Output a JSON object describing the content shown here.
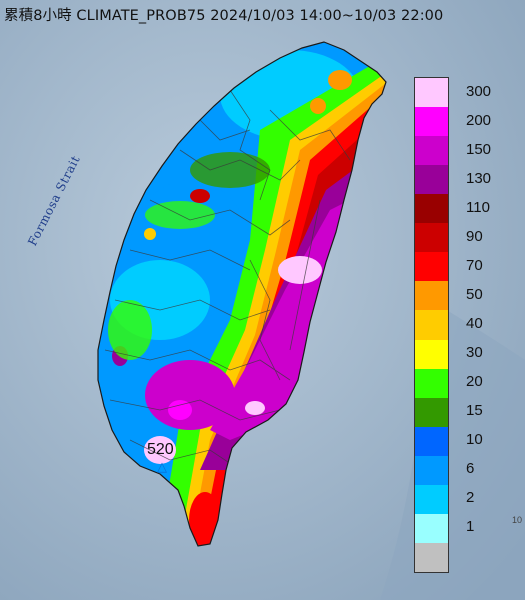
{
  "title": "累積8小時 CLIMATE_PROB75 2024/10/03 14:00~10/03 22:00",
  "strait_label": "Formosa Strait",
  "max_value": "520",
  "edge_number": "10",
  "legend": [
    {
      "label": "300",
      "color": "#ffc8ff"
    },
    {
      "label": "200",
      "color": "#ff00ff"
    },
    {
      "label": "150",
      "color": "#cc00cc"
    },
    {
      "label": "130",
      "color": "#990099"
    },
    {
      "label": "110",
      "color": "#990000"
    },
    {
      "label": "90",
      "color": "#cc0000"
    },
    {
      "label": "70",
      "color": "#ff0000"
    },
    {
      "label": "50",
      "color": "#ff9900"
    },
    {
      "label": "40",
      "color": "#ffcc00"
    },
    {
      "label": "30",
      "color": "#ffff00"
    },
    {
      "label": "20",
      "color": "#33ff00"
    },
    {
      "label": "15",
      "color": "#339900"
    },
    {
      "label": "10",
      "color": "#0066ff"
    },
    {
      "label": "6",
      "color": "#0099ff"
    },
    {
      "label": "2",
      "color": "#00ccff"
    },
    {
      "label": "1",
      "color": "#99ffff"
    },
    {
      "label": "",
      "color": "#c0c0c0"
    }
  ]
}
